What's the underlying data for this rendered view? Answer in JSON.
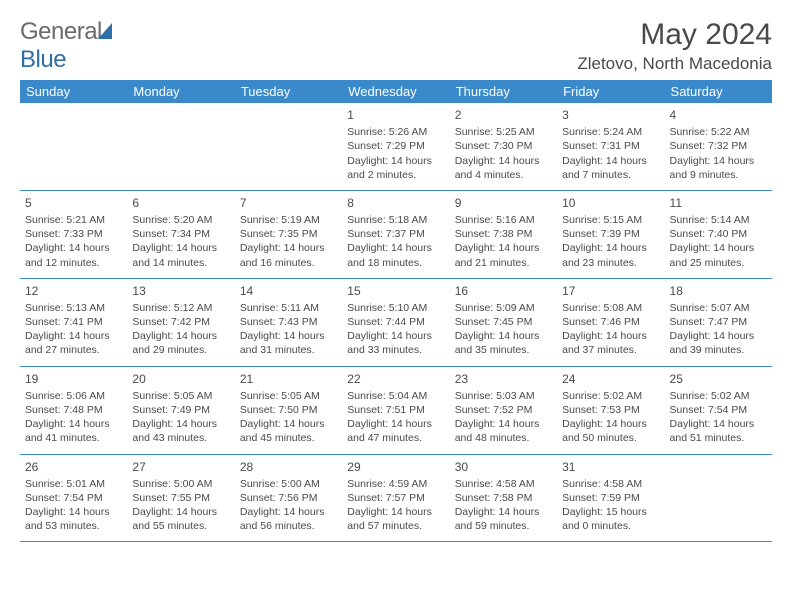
{
  "logo": {
    "text_a": "General",
    "text_b": "Blue"
  },
  "title": "May 2024",
  "location": "Zletovo, North Macedonia",
  "weekdays": [
    "Sunday",
    "Monday",
    "Tuesday",
    "Wednesday",
    "Thursday",
    "Friday",
    "Saturday"
  ],
  "style": {
    "header_bg": "#3a8acb",
    "header_fg": "#ffffff",
    "border_color": "#3a8acb",
    "text_color": "#4a4a4a",
    "logo_gray": "#6a6a6a",
    "logo_blue": "#2f6fa7"
  },
  "weeks": [
    [
      null,
      null,
      null,
      {
        "n": "1",
        "sr": "Sunrise: 5:26 AM",
        "ss": "Sunset: 7:29 PM",
        "d1": "Daylight: 14 hours",
        "d2": "and 2 minutes."
      },
      {
        "n": "2",
        "sr": "Sunrise: 5:25 AM",
        "ss": "Sunset: 7:30 PM",
        "d1": "Daylight: 14 hours",
        "d2": "and 4 minutes."
      },
      {
        "n": "3",
        "sr": "Sunrise: 5:24 AM",
        "ss": "Sunset: 7:31 PM",
        "d1": "Daylight: 14 hours",
        "d2": "and 7 minutes."
      },
      {
        "n": "4",
        "sr": "Sunrise: 5:22 AM",
        "ss": "Sunset: 7:32 PM",
        "d1": "Daylight: 14 hours",
        "d2": "and 9 minutes."
      }
    ],
    [
      {
        "n": "5",
        "sr": "Sunrise: 5:21 AM",
        "ss": "Sunset: 7:33 PM",
        "d1": "Daylight: 14 hours",
        "d2": "and 12 minutes."
      },
      {
        "n": "6",
        "sr": "Sunrise: 5:20 AM",
        "ss": "Sunset: 7:34 PM",
        "d1": "Daylight: 14 hours",
        "d2": "and 14 minutes."
      },
      {
        "n": "7",
        "sr": "Sunrise: 5:19 AM",
        "ss": "Sunset: 7:35 PM",
        "d1": "Daylight: 14 hours",
        "d2": "and 16 minutes."
      },
      {
        "n": "8",
        "sr": "Sunrise: 5:18 AM",
        "ss": "Sunset: 7:37 PM",
        "d1": "Daylight: 14 hours",
        "d2": "and 18 minutes."
      },
      {
        "n": "9",
        "sr": "Sunrise: 5:16 AM",
        "ss": "Sunset: 7:38 PM",
        "d1": "Daylight: 14 hours",
        "d2": "and 21 minutes."
      },
      {
        "n": "10",
        "sr": "Sunrise: 5:15 AM",
        "ss": "Sunset: 7:39 PM",
        "d1": "Daylight: 14 hours",
        "d2": "and 23 minutes."
      },
      {
        "n": "11",
        "sr": "Sunrise: 5:14 AM",
        "ss": "Sunset: 7:40 PM",
        "d1": "Daylight: 14 hours",
        "d2": "and 25 minutes."
      }
    ],
    [
      {
        "n": "12",
        "sr": "Sunrise: 5:13 AM",
        "ss": "Sunset: 7:41 PM",
        "d1": "Daylight: 14 hours",
        "d2": "and 27 minutes."
      },
      {
        "n": "13",
        "sr": "Sunrise: 5:12 AM",
        "ss": "Sunset: 7:42 PM",
        "d1": "Daylight: 14 hours",
        "d2": "and 29 minutes."
      },
      {
        "n": "14",
        "sr": "Sunrise: 5:11 AM",
        "ss": "Sunset: 7:43 PM",
        "d1": "Daylight: 14 hours",
        "d2": "and 31 minutes."
      },
      {
        "n": "15",
        "sr": "Sunrise: 5:10 AM",
        "ss": "Sunset: 7:44 PM",
        "d1": "Daylight: 14 hours",
        "d2": "and 33 minutes."
      },
      {
        "n": "16",
        "sr": "Sunrise: 5:09 AM",
        "ss": "Sunset: 7:45 PM",
        "d1": "Daylight: 14 hours",
        "d2": "and 35 minutes."
      },
      {
        "n": "17",
        "sr": "Sunrise: 5:08 AM",
        "ss": "Sunset: 7:46 PM",
        "d1": "Daylight: 14 hours",
        "d2": "and 37 minutes."
      },
      {
        "n": "18",
        "sr": "Sunrise: 5:07 AM",
        "ss": "Sunset: 7:47 PM",
        "d1": "Daylight: 14 hours",
        "d2": "and 39 minutes."
      }
    ],
    [
      {
        "n": "19",
        "sr": "Sunrise: 5:06 AM",
        "ss": "Sunset: 7:48 PM",
        "d1": "Daylight: 14 hours",
        "d2": "and 41 minutes."
      },
      {
        "n": "20",
        "sr": "Sunrise: 5:05 AM",
        "ss": "Sunset: 7:49 PM",
        "d1": "Daylight: 14 hours",
        "d2": "and 43 minutes."
      },
      {
        "n": "21",
        "sr": "Sunrise: 5:05 AM",
        "ss": "Sunset: 7:50 PM",
        "d1": "Daylight: 14 hours",
        "d2": "and 45 minutes."
      },
      {
        "n": "22",
        "sr": "Sunrise: 5:04 AM",
        "ss": "Sunset: 7:51 PM",
        "d1": "Daylight: 14 hours",
        "d2": "and 47 minutes."
      },
      {
        "n": "23",
        "sr": "Sunrise: 5:03 AM",
        "ss": "Sunset: 7:52 PM",
        "d1": "Daylight: 14 hours",
        "d2": "and 48 minutes."
      },
      {
        "n": "24",
        "sr": "Sunrise: 5:02 AM",
        "ss": "Sunset: 7:53 PM",
        "d1": "Daylight: 14 hours",
        "d2": "and 50 minutes."
      },
      {
        "n": "25",
        "sr": "Sunrise: 5:02 AM",
        "ss": "Sunset: 7:54 PM",
        "d1": "Daylight: 14 hours",
        "d2": "and 51 minutes."
      }
    ],
    [
      {
        "n": "26",
        "sr": "Sunrise: 5:01 AM",
        "ss": "Sunset: 7:54 PM",
        "d1": "Daylight: 14 hours",
        "d2": "and 53 minutes."
      },
      {
        "n": "27",
        "sr": "Sunrise: 5:00 AM",
        "ss": "Sunset: 7:55 PM",
        "d1": "Daylight: 14 hours",
        "d2": "and 55 minutes."
      },
      {
        "n": "28",
        "sr": "Sunrise: 5:00 AM",
        "ss": "Sunset: 7:56 PM",
        "d1": "Daylight: 14 hours",
        "d2": "and 56 minutes."
      },
      {
        "n": "29",
        "sr": "Sunrise: 4:59 AM",
        "ss": "Sunset: 7:57 PM",
        "d1": "Daylight: 14 hours",
        "d2": "and 57 minutes."
      },
      {
        "n": "30",
        "sr": "Sunrise: 4:58 AM",
        "ss": "Sunset: 7:58 PM",
        "d1": "Daylight: 14 hours",
        "d2": "and 59 minutes."
      },
      {
        "n": "31",
        "sr": "Sunrise: 4:58 AM",
        "ss": "Sunset: 7:59 PM",
        "d1": "Daylight: 15 hours",
        "d2": "and 0 minutes."
      },
      null
    ]
  ]
}
